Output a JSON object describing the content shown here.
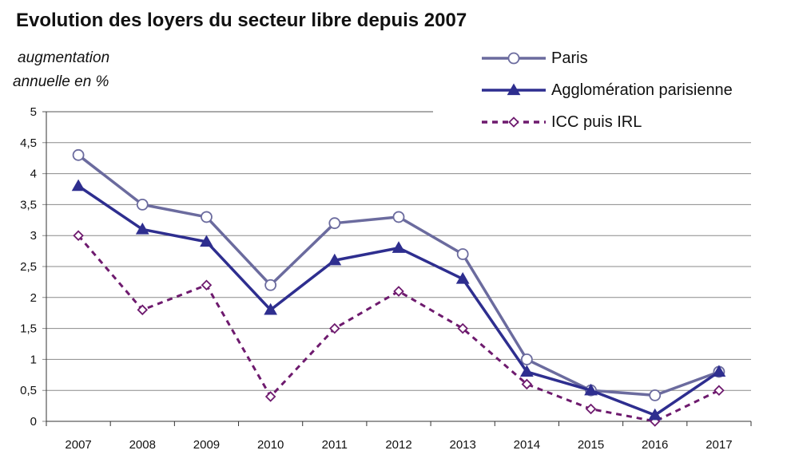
{
  "chart_data": {
    "type": "line",
    "title": "Evolution des loyers du secteur libre depuis 2007",
    "ylabel_lines": [
      "augmentation",
      "annuelle en %"
    ],
    "categories": [
      "2007",
      "2008",
      "2009",
      "2010",
      "2011",
      "2012",
      "2013",
      "2014",
      "2015",
      "2016",
      "2017"
    ],
    "ylim": [
      0,
      5
    ],
    "yticks": [
      "0",
      "0,5",
      "1",
      "1,5",
      "2",
      "2,5",
      "3",
      "3,5",
      "4",
      "4,5",
      "5"
    ],
    "grid": true,
    "legend_position": "top-right",
    "series": [
      {
        "name": "Paris",
        "color": "#6b6b9e",
        "marker": "circle-open",
        "dash": "solid",
        "values": [
          4.3,
          3.5,
          3.3,
          2.2,
          3.2,
          3.3,
          2.7,
          1.0,
          0.5,
          0.42,
          0.8
        ]
      },
      {
        "name": "Agglomération parisienne",
        "color": "#2e2e8f",
        "marker": "triangle-filled",
        "dash": "solid",
        "values": [
          3.8,
          3.1,
          2.9,
          1.8,
          2.6,
          2.8,
          2.3,
          0.8,
          0.5,
          0.1,
          0.8
        ]
      },
      {
        "name": "ICC puis IRL",
        "color": "#6e1a6e",
        "marker": "diamond-open",
        "dash": "dashed",
        "values": [
          3.0,
          1.8,
          2.2,
          0.4,
          1.5,
          2.1,
          1.5,
          0.6,
          0.2,
          0.0,
          0.5
        ]
      }
    ]
  }
}
